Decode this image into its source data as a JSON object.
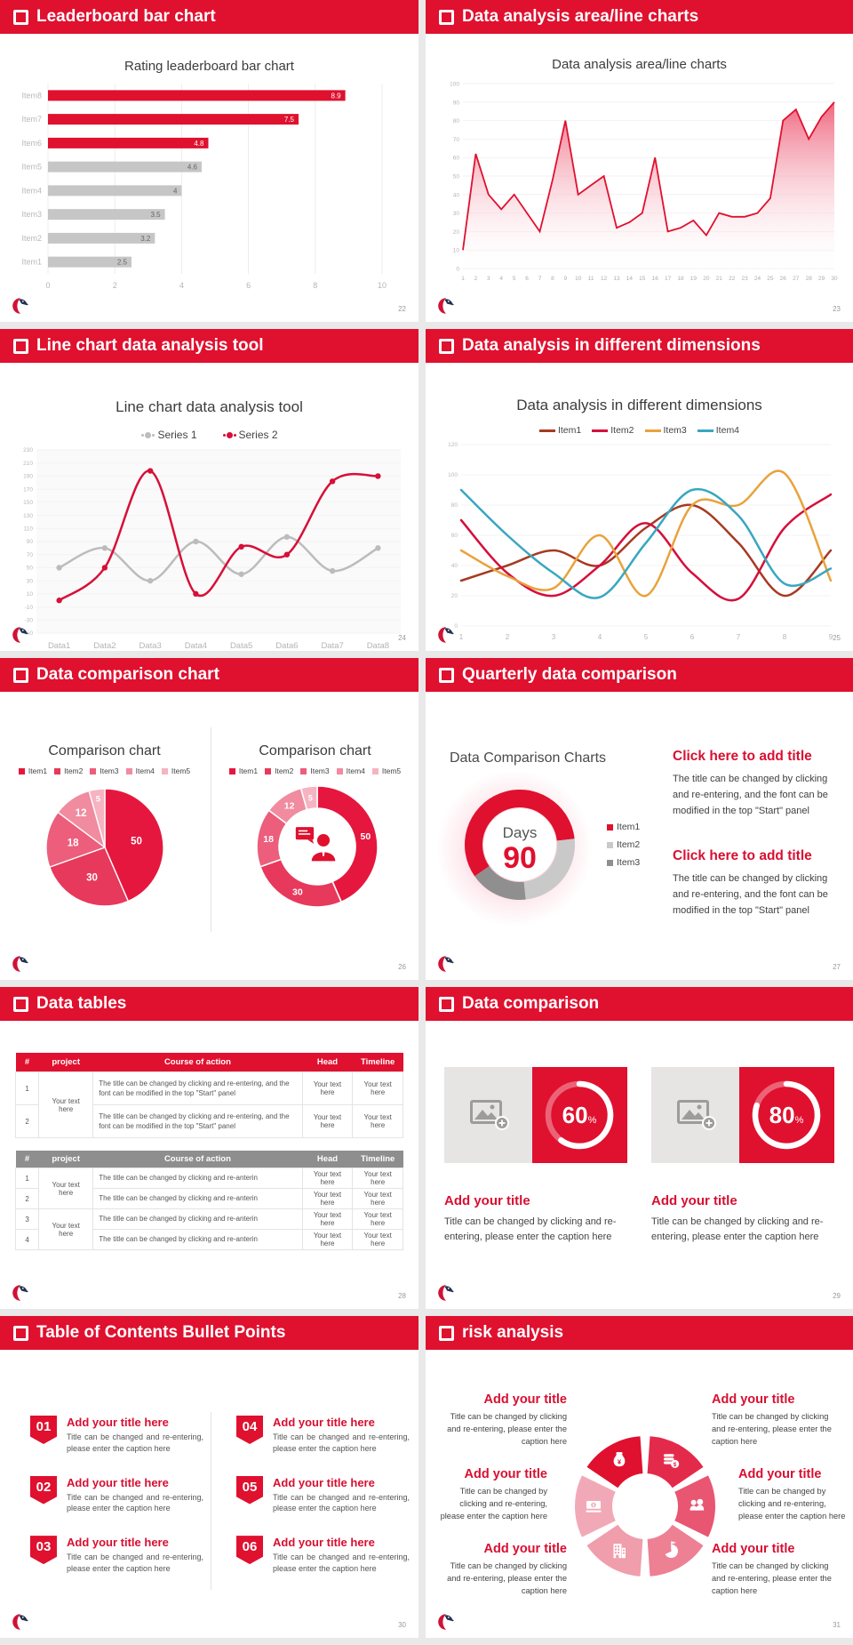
{
  "canvas": {
    "bg": "#e9e9e9"
  },
  "theme": {
    "red": "#e0102f",
    "gray_bar": "#c6c6c6",
    "text_dark": "#3c3c3c",
    "body_text": "#555555"
  },
  "slides": [
    {
      "title": "Leaderboard bar chart",
      "page": "22"
    },
    {
      "title": "Data analysis area/line charts",
      "page": "23"
    },
    {
      "title": "Line chart data analysis tool",
      "page": "24"
    },
    {
      "title": "Data analysis in different dimensions",
      "page": "25"
    },
    {
      "title": "Data comparison chart",
      "page": "26"
    },
    {
      "title": "Quarterly data comparison",
      "page": "27",
      "chart_title": "Data Comparison Charts",
      "blocks": [
        {
          "title": "Click here to add title",
          "body": "The title can be changed by clicking and re-entering, and the font can be modified in the top \"Start\" panel"
        },
        {
          "title": "Click here to add title",
          "body": "The title can be changed by clicking and re-entering, and the font can be modified in the top \"Start\" panel"
        }
      ]
    },
    {
      "title": "Data tables",
      "page": "28",
      "tables": {
        "headers": [
          "#",
          "project",
          "Course of action",
          "Head",
          "Timeline"
        ],
        "table1": {
          "project": "Your text here",
          "rows": [
            {
              "num": "1",
              "action": "The title can be changed by clicking and re-entering, and the font can be modified in the top \"Start\" panel",
              "head": "Your text here",
              "timeline": "Your text here"
            },
            {
              "num": "2",
              "action": "The title can be changed by clicking and re-entering, and the font can be modified in the top \"Start\" panel",
              "head": "Your text here",
              "timeline": "Your text here"
            }
          ]
        },
        "table2": {
          "groups": [
            {
              "project": "Your text here",
              "rows": [
                {
                  "num": "1",
                  "action": "The title can be changed by clicking and re-anterin",
                  "head": "Your text here",
                  "timeline": "Your text here"
                },
                {
                  "num": "2",
                  "action": "The title can be changed by clicking and re-anterin",
                  "head": "Your text here",
                  "timeline": "Your text here"
                }
              ]
            },
            {
              "project": "Your text here",
              "rows": [
                {
                  "num": "3",
                  "action": "The title can be changed by clicking and re-anterin",
                  "head": "Your text here",
                  "timeline": "Your text here"
                },
                {
                  "num": "4",
                  "action": "The title can be changed by clicking and re-anterin",
                  "head": "Your text here",
                  "timeline": "Your text here"
                }
              ]
            }
          ]
        }
      }
    },
    {
      "title": "Data comparison",
      "page": "29",
      "cards": [
        {
          "title": "Add your title",
          "body": "Title can be changed by clicking and re-entering, please enter the caption here"
        },
        {
          "title": "Add your title",
          "body": "Title can be changed by clicking and re-entering, please enter the caption here"
        }
      ]
    },
    {
      "title": "Table of Contents Bullet Points",
      "page": "30",
      "items": [
        {
          "num": "01",
          "title": "Add your title here",
          "body": "Title can be changed and re-entering, please enter the caption here"
        },
        {
          "num": "02",
          "title": "Add your title here",
          "body": "Title can be changed and re-entering, please enter the caption here"
        },
        {
          "num": "03",
          "title": "Add your title here",
          "body": "Title can be changed and re-entering, please enter the caption here"
        },
        {
          "num": "04",
          "title": "Add your title here",
          "body": "Title can be changed and re-entering, please enter the caption here"
        },
        {
          "num": "05",
          "title": "Add your title here",
          "body": "Title can be changed and re-entering, please enter the caption here"
        },
        {
          "num": "06",
          "title": "Add your title here",
          "body": "Title can be changed and re-entering, please enter the caption here"
        }
      ]
    },
    {
      "title": "risk analysis",
      "page": "31",
      "blocks": [
        {
          "title": "Add your title",
          "body": "Title can be changed by clicking and re-entering, please enter the caption here"
        },
        {
          "title": "Add your title",
          "body": "Title can be changed by clicking and re-entering, please enter the caption here"
        },
        {
          "title": "Add your title",
          "body": "Title can be changed by clicking and re-entering, please enter the caption here"
        },
        {
          "title": "Add your title",
          "body": "Title can be changed by clicking and re-entering, please enter the caption here"
        },
        {
          "title": "Add your title",
          "body": "Title can be changed by clicking and re-entering, please enter the caption here"
        },
        {
          "title": "Add your title",
          "body": "Title can be changed by clicking and re-entering, please enter the caption here"
        }
      ],
      "wheel": {
        "petals": [
          {
            "az": 330,
            "color": "#e0102f",
            "icon": "money-bag"
          },
          {
            "az": 30,
            "color": "#e42a4b",
            "icon": "coins"
          },
          {
            "az": 90,
            "color": "#e85672",
            "icon": "people"
          },
          {
            "az": 150,
            "color": "#ee8094",
            "icon": "pie-chart"
          },
          {
            "az": 210,
            "color": "#f09dac",
            "icon": "building"
          },
          {
            "az": 270,
            "color": "#f2a9b7",
            "icon": "cash"
          }
        ]
      }
    }
  ],
  "chart_data": [
    {
      "type": "bar",
      "orientation": "horizontal",
      "title": "Rating leaderboard bar chart",
      "categories": [
        "Item1",
        "Item2",
        "Item3",
        "Item4",
        "Item5",
        "Item6",
        "Item7",
        "Item8"
      ],
      "values": [
        2.5,
        3.2,
        3.5,
        4,
        4.6,
        4.8,
        7.5,
        8.9
      ],
      "bar_colors": [
        "#c6c6c6",
        "#c6c6c6",
        "#c6c6c6",
        "#c6c6c6",
        "#c6c6c6",
        "#e0102f",
        "#e0102f",
        "#e0102f"
      ],
      "xlim": [
        0,
        10
      ],
      "xticks": [
        0,
        2,
        4,
        6,
        8,
        10
      ]
    },
    {
      "type": "area",
      "title": "Data analysis area/line charts",
      "x": [
        1,
        2,
        3,
        4,
        5,
        6,
        7,
        8,
        9,
        10,
        11,
        12,
        13,
        14,
        15,
        16,
        17,
        18,
        19,
        20,
        21,
        22,
        23,
        24,
        25,
        26,
        27,
        28,
        29,
        30
      ],
      "values": [
        10,
        62,
        40,
        32,
        40,
        30,
        20,
        48,
        80,
        40,
        45,
        50,
        22,
        25,
        30,
        60,
        20,
        22,
        26,
        18,
        30,
        28,
        28,
        30,
        38,
        80,
        86,
        70,
        82,
        90
      ],
      "ylim": [
        0,
        100
      ],
      "ytick_step": 10,
      "line_color": "#e0102f",
      "fill_from": "#ee5f79",
      "fill_to": "#ffffff"
    },
    {
      "type": "line",
      "title": "Line chart data analysis tool",
      "categories": [
        "Data1",
        "Data2",
        "Data3",
        "Data4",
        "Data5",
        "Data6",
        "Data7",
        "Data8"
      ],
      "ylim": [
        -50,
        230
      ],
      "ytick_step": 20,
      "markers": true,
      "legend_style": "dashdot",
      "series": [
        {
          "name": "Series 1",
          "color": "#bcbcbc",
          "values": [
            50,
            80,
            30,
            90,
            40,
            97,
            45,
            80
          ]
        },
        {
          "name": "Series 2",
          "color": "#d80f38",
          "values": [
            0,
            50,
            198,
            10,
            82,
            70,
            182,
            190
          ]
        }
      ]
    },
    {
      "type": "line",
      "title": "Data analysis in different dimensions",
      "x": [
        1,
        2,
        3,
        4,
        5,
        6,
        7,
        8,
        9
      ],
      "ylim": [
        0,
        120
      ],
      "ytick_step": 20,
      "markers": false,
      "legend_style": "dash",
      "series": [
        {
          "name": "Item1",
          "color": "#a63a22",
          "values": [
            30,
            40,
            50,
            40,
            65,
            80,
            55,
            20,
            50
          ]
        },
        {
          "name": "Item2",
          "color": "#d50f3c",
          "values": [
            70,
            35,
            20,
            40,
            68,
            35,
            18,
            65,
            87
          ]
        },
        {
          "name": "Item3",
          "color": "#e9a23b",
          "values": [
            50,
            33,
            25,
            60,
            20,
            80,
            80,
            101,
            30
          ]
        },
        {
          "name": "Item4",
          "color": "#38a7c1",
          "values": [
            90,
            60,
            35,
            19,
            55,
            90,
            73,
            28,
            38
          ]
        }
      ]
    },
    {
      "type": "pie",
      "title": "Comparison chart",
      "labels": [
        "Item1",
        "Item2",
        "Item3",
        "Item4",
        "Item5"
      ],
      "values": [
        50,
        30,
        18,
        12,
        5
      ],
      "colors": [
        "#e5173f",
        "#e7395b",
        "#ec5e7b",
        "#f18ba0",
        "#f6b3c2"
      ]
    },
    {
      "type": "donut",
      "title": "Comparison chart",
      "center_icon": "person",
      "labels": [
        "Item1",
        "Item2",
        "Item3",
        "Item4",
        "Item5"
      ],
      "values": [
        50,
        30,
        18,
        12,
        5
      ],
      "colors": [
        "#e5173f",
        "#e7395b",
        "#ec5e7b",
        "#f18ba0",
        "#f6b3c2"
      ]
    },
    {
      "type": "donut",
      "title": "Data Comparison Charts",
      "center_label": "Days",
      "center_value": "90",
      "start_angle": 235,
      "segments": [
        {
          "label": "Item1",
          "value": 58,
          "color": "#e0102f"
        },
        {
          "label": "Item2",
          "value": 25,
          "color": "#c9c9c9"
        },
        {
          "label": "Item3",
          "value": 17,
          "color": "#8f8f8f"
        }
      ]
    },
    {
      "type": "progress_ring",
      "value": 60,
      "suffix": "%"
    },
    {
      "type": "progress_ring",
      "value": 80,
      "suffix": "%"
    }
  ]
}
